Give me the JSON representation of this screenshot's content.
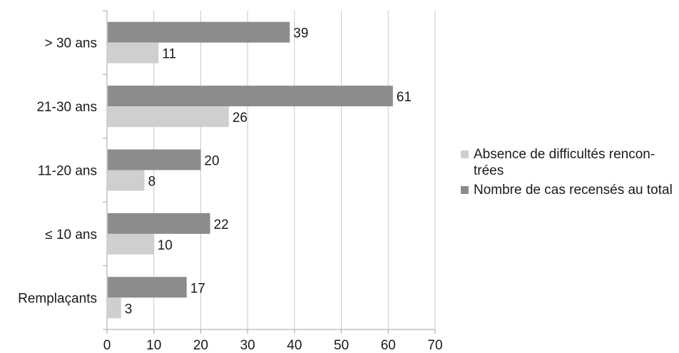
{
  "chart_data": {
    "type": "bar",
    "orientation": "horizontal",
    "categories": [
      "> 30 ans",
      "21-30 ans",
      "11-20 ans",
      "≤ 10 ans",
      "Remplaçants"
    ],
    "series": [
      {
        "name": "Absence de difficultés rencon-trées",
        "values": [
          11,
          26,
          8,
          10,
          3
        ],
        "color": "#cfcfcf"
      },
      {
        "name": "Nombre de cas recensés au total",
        "values": [
          39,
          61,
          20,
          22,
          17
        ],
        "color": "#8c8c8c"
      }
    ],
    "xlim": [
      0,
      70
    ],
    "xticks": [
      "0",
      "10",
      "20",
      "30",
      "40",
      "50",
      "60",
      "70"
    ],
    "grid": true,
    "legend_position": "right",
    "data_labels": true
  },
  "legend": {
    "items": [
      {
        "label": "Absence de difficultés rencon-trées",
        "color": "#cfcfcf"
      },
      {
        "label": "Nombre de cas recensés au total",
        "color": "#8c8c8c"
      }
    ]
  }
}
